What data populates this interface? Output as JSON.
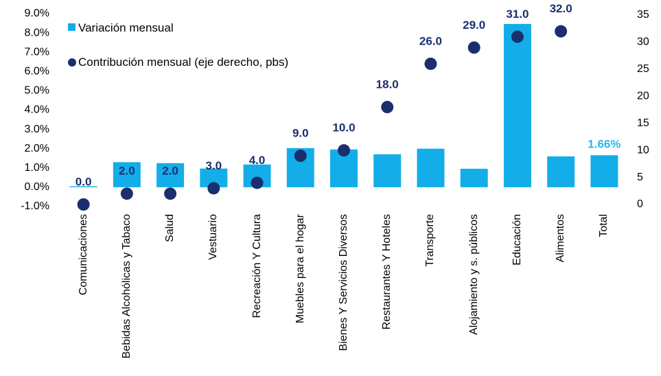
{
  "chart_data": {
    "type": "bar",
    "categories": [
      "Comunicaciones",
      "Bebidas Alcohólicas y Tabaco",
      "Salud",
      "Vestuario",
      "Recreación Y Cultura",
      "Muebles para el hogar",
      "Bienes Y Servicios Diversos",
      "Restaurantes Y Hoteles",
      "Transporte",
      "Alojamiento y s. públicos",
      "Educación",
      "Alimentos",
      "Total"
    ],
    "series": [
      {
        "name": "Variación mensual",
        "type": "bar",
        "color": "#13aee9",
        "label_color": "#2ab7ee",
        "values": [
          0.05,
          1.3,
          1.25,
          0.97,
          1.18,
          2.03,
          1.96,
          1.71,
          2.0,
          0.96,
          8.47,
          1.6,
          1.66
        ],
        "value_labels": [
          null,
          null,
          null,
          null,
          null,
          null,
          null,
          null,
          null,
          null,
          null,
          null,
          "1.66%"
        ]
      },
      {
        "name": "Contribución mensual (eje derecho, pbs)",
        "type": "scatter",
        "axis": "y2",
        "color": "#1b2f6e",
        "values": [
          0,
          2,
          2,
          3,
          4,
          9,
          10,
          18,
          26,
          29,
          31,
          32,
          null
        ],
        "value_labels": [
          "0.0",
          "2.0",
          "2.0",
          "3.0",
          "4.0",
          "9.0",
          "10.0",
          "18.0",
          "26.0",
          "29.0",
          "31.0",
          "32.0",
          null
        ]
      }
    ],
    "ylim": [
      -1,
      9
    ],
    "yticks": [
      {
        "value": -1,
        "label": "-1.0%"
      },
      {
        "value": 0,
        "label": "0.0%"
      },
      {
        "value": 1,
        "label": "1.0%"
      },
      {
        "value": 2,
        "label": "2.0%"
      },
      {
        "value": 3,
        "label": "3.0%"
      },
      {
        "value": 4,
        "label": "4.0%"
      },
      {
        "value": 5,
        "label": "5.0%"
      },
      {
        "value": 6,
        "label": "6.0%"
      },
      {
        "value": 7,
        "label": "7.0%"
      },
      {
        "value": 8,
        "label": "8.0%"
      },
      {
        "value": 9,
        "label": "9.0%"
      }
    ],
    "y2lim": [
      0,
      35
    ],
    "y2ticks": [
      0,
      5,
      10,
      15,
      20,
      25,
      30,
      35
    ],
    "legend": "top-left",
    "grid": false
  }
}
